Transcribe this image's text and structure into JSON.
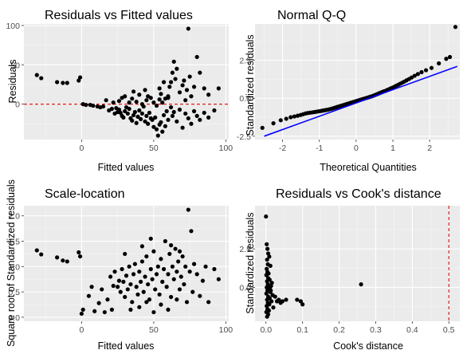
{
  "chart_data": [
    {
      "type": "scatter",
      "title": "Residuals vs Fitted values",
      "xlabel": "Fitted values",
      "ylabel": "Residuals",
      "xlim": [
        -40,
        102
      ],
      "ylim": [
        -45,
        102
      ],
      "xticks": [
        0,
        50,
        100
      ],
      "yticks": [
        0,
        50,
        100
      ],
      "hline": {
        "y": 0,
        "color": "#e41a1c",
        "style": "dashed"
      },
      "grid": true,
      "points": [
        [
          -31,
          37
        ],
        [
          -28,
          33
        ],
        [
          -17,
          28
        ],
        [
          -13,
          27
        ],
        [
          -10,
          27
        ],
        [
          -2,
          30
        ],
        [
          -1,
          34
        ],
        [
          1,
          0
        ],
        [
          3,
          -1
        ],
        [
          6,
          -1
        ],
        [
          8,
          -2
        ],
        [
          11,
          -3
        ],
        [
          13,
          -4
        ],
        [
          15,
          -3
        ],
        [
          17,
          5
        ],
        [
          19,
          -8
        ],
        [
          21,
          -6
        ],
        [
          22,
          2
        ],
        [
          23,
          -12
        ],
        [
          24,
          -5
        ],
        [
          25,
          -10
        ],
        [
          26,
          -7
        ],
        [
          27,
          -11
        ],
        [
          28,
          -15
        ],
        [
          29,
          -17
        ],
        [
          30,
          -9
        ],
        [
          31,
          -4
        ],
        [
          32,
          -12
        ],
        [
          33,
          -6
        ],
        [
          34,
          -18
        ],
        [
          35,
          -21
        ],
        [
          36,
          -14
        ],
        [
          37,
          -10
        ],
        [
          38,
          -24
        ],
        [
          39,
          -16
        ],
        [
          40,
          -8
        ],
        [
          41,
          -19
        ],
        [
          42,
          -12
        ],
        [
          43,
          -3
        ],
        [
          44,
          -22
        ],
        [
          45,
          -15
        ],
        [
          46,
          -25
        ],
        [
          47,
          -11
        ],
        [
          48,
          -18
        ],
        [
          49,
          -20
        ],
        [
          50,
          -29
        ],
        [
          51,
          -17
        ],
        [
          52,
          -32
        ],
        [
          53,
          -40
        ],
        [
          54,
          -26
        ],
        [
          55,
          -23
        ],
        [
          56,
          -35
        ],
        [
          57,
          -14
        ],
        [
          58,
          -28
        ],
        [
          59,
          -9
        ],
        [
          60,
          -20
        ],
        [
          62,
          -4
        ],
        [
          63,
          -15
        ],
        [
          64,
          -10
        ],
        [
          66,
          -22
        ],
        [
          68,
          -7
        ],
        [
          70,
          -30
        ],
        [
          72,
          -12
        ],
        [
          74,
          -18
        ],
        [
          76,
          -25
        ],
        [
          78,
          -9
        ],
        [
          80,
          -15
        ],
        [
          82,
          -20
        ],
        [
          85,
          -11
        ],
        [
          88,
          -17
        ],
        [
          92,
          -8
        ],
        [
          26,
          4
        ],
        [
          30,
          10
        ],
        [
          33,
          2
        ],
        [
          35,
          7
        ],
        [
          38,
          3
        ],
        [
          40,
          12
        ],
        [
          42,
          0
        ],
        [
          45,
          5
        ],
        [
          48,
          8
        ],
        [
          50,
          2
        ],
        [
          52,
          -2
        ],
        [
          54,
          6
        ],
        [
          55,
          13
        ],
        [
          56,
          2
        ],
        [
          58,
          7
        ],
        [
          60,
          10
        ],
        [
          61,
          22
        ],
        [
          62,
          28
        ],
        [
          63,
          40
        ],
        [
          64,
          54
        ],
        [
          65,
          32
        ],
        [
          66,
          45
        ],
        [
          68,
          15
        ],
        [
          70,
          24
        ],
        [
          71,
          30
        ],
        [
          72,
          5
        ],
        [
          73,
          18
        ],
        [
          74,
          96
        ],
        [
          75,
          35
        ],
        [
          76,
          10
        ],
        [
          78,
          22
        ],
        [
          80,
          60
        ],
        [
          82,
          40
        ],
        [
          85,
          20
        ],
        [
          88,
          12
        ],
        [
          95,
          20
        ],
        [
          54,
          20
        ],
        [
          57,
          28
        ],
        [
          60,
          8
        ],
        [
          44,
          18
        ],
        [
          46,
          10
        ],
        [
          36,
          16
        ],
        [
          28,
          8
        ]
      ]
    },
    {
      "type": "scatter",
      "title": "Normal Q-Q",
      "xlabel": "Theoretical Quantities",
      "ylabel": "Standardized residuals",
      "xlim": [
        -2.75,
        2.82
      ],
      "ylim": [
        -2.72,
        4.9
      ],
      "xticks": [
        -2,
        -1,
        0,
        1,
        2
      ],
      "yticks": [
        -2.5,
        0,
        2.5
      ],
      "reference_line": {
        "from": [
          -2.5,
          -2.5
        ],
        "to": [
          2.75,
          2.1
        ],
        "color": "#0000ff"
      },
      "grid": true,
      "points": [
        [
          -2.55,
          -1.95
        ],
        [
          -2.25,
          -1.65
        ],
        [
          -2.05,
          -1.45
        ],
        [
          -1.9,
          -1.35
        ],
        [
          -1.78,
          -1.25
        ],
        [
          -1.68,
          -1.2
        ],
        [
          -1.59,
          -1.15
        ],
        [
          -1.51,
          -1.1
        ],
        [
          -1.44,
          -1.05
        ],
        [
          -1.37,
          -1.0
        ],
        [
          -1.31,
          -0.97
        ],
        [
          -1.25,
          -0.95
        ],
        [
          -1.19,
          -0.93
        ],
        [
          -1.14,
          -0.91
        ],
        [
          -1.09,
          -0.89
        ],
        [
          -1.04,
          -0.87
        ],
        [
          -0.99,
          -0.85
        ],
        [
          -0.94,
          -0.83
        ],
        [
          -0.9,
          -0.81
        ],
        [
          -0.85,
          -0.79
        ],
        [
          -0.81,
          -0.77
        ],
        [
          -0.76,
          -0.75
        ],
        [
          -0.72,
          -0.72
        ],
        [
          -0.68,
          -0.7
        ],
        [
          -0.64,
          -0.67
        ],
        [
          -0.6,
          -0.64
        ],
        [
          -0.56,
          -0.61
        ],
        [
          -0.52,
          -0.58
        ],
        [
          -0.48,
          -0.55
        ],
        [
          -0.44,
          -0.52
        ],
        [
          -0.4,
          -0.49
        ],
        [
          -0.36,
          -0.46
        ],
        [
          -0.32,
          -0.43
        ],
        [
          -0.28,
          -0.4
        ],
        [
          -0.24,
          -0.37
        ],
        [
          -0.2,
          -0.34
        ],
        [
          -0.16,
          -0.31
        ],
        [
          -0.12,
          -0.28
        ],
        [
          -0.08,
          -0.25
        ],
        [
          -0.04,
          -0.22
        ],
        [
          0.0,
          -0.19
        ],
        [
          0.04,
          -0.16
        ],
        [
          0.08,
          -0.13
        ],
        [
          0.12,
          -0.1
        ],
        [
          0.16,
          -0.07
        ],
        [
          0.2,
          -0.04
        ],
        [
          0.24,
          -0.01
        ],
        [
          0.28,
          0.02
        ],
        [
          0.32,
          0.05
        ],
        [
          0.36,
          0.08
        ],
        [
          0.4,
          0.11
        ],
        [
          0.44,
          0.14
        ],
        [
          0.48,
          0.18
        ],
        [
          0.52,
          0.22
        ],
        [
          0.56,
          0.26
        ],
        [
          0.6,
          0.3
        ],
        [
          0.64,
          0.34
        ],
        [
          0.68,
          0.38
        ],
        [
          0.72,
          0.42
        ],
        [
          0.76,
          0.46
        ],
        [
          0.81,
          0.5
        ],
        [
          0.85,
          0.55
        ],
        [
          0.9,
          0.6
        ],
        [
          0.94,
          0.65
        ],
        [
          0.99,
          0.7
        ],
        [
          1.04,
          0.76
        ],
        [
          1.09,
          0.82
        ],
        [
          1.14,
          0.88
        ],
        [
          1.19,
          0.95
        ],
        [
          1.25,
          1.02
        ],
        [
          1.31,
          1.1
        ],
        [
          1.37,
          1.18
        ],
        [
          1.44,
          1.27
        ],
        [
          1.51,
          1.37
        ],
        [
          1.59,
          1.48
        ],
        [
          1.68,
          1.6
        ],
        [
          1.78,
          1.72
        ],
        [
          1.9,
          1.85
        ],
        [
          2.05,
          2.0
        ],
        [
          2.25,
          2.3
        ],
        [
          2.45,
          2.6
        ],
        [
          2.55,
          2.72
        ],
        [
          2.7,
          4.7
        ]
      ]
    },
    {
      "type": "scatter",
      "title": "Scale-location",
      "xlabel": "Fitted values",
      "ylabel": "Square root of Standardized residuals",
      "xlim": [
        -40,
        102
      ],
      "ylim": [
        -0.08,
        2.2
      ],
      "xticks": [
        0,
        50,
        100
      ],
      "yticks": [
        0.0,
        0.5,
        1.0,
        1.5,
        2.0
      ],
      "grid": true,
      "points": [
        [
          -31,
          1.32
        ],
        [
          -28,
          1.24
        ],
        [
          -17,
          1.18
        ],
        [
          -13,
          1.12
        ],
        [
          -10,
          1.1
        ],
        [
          -2,
          1.28
        ],
        [
          -1,
          1.2
        ],
        [
          0,
          0.07
        ],
        [
          1,
          0.15
        ],
        [
          5,
          0.42
        ],
        [
          7,
          0.6
        ],
        [
          9,
          0.12
        ],
        [
          12,
          0.28
        ],
        [
          14,
          0.55
        ],
        [
          16,
          0.1
        ],
        [
          18,
          0.35
        ],
        [
          20,
          0.8
        ],
        [
          21,
          0.15
        ],
        [
          22,
          0.62
        ],
        [
          23,
          0.9
        ],
        [
          25,
          0.6
        ],
        [
          26,
          0.72
        ],
        [
          27,
          0.5
        ],
        [
          28,
          0.95
        ],
        [
          29,
          0.7
        ],
        [
          30,
          0.4
        ],
        [
          31,
          0.82
        ],
        [
          32,
          0.55
        ],
        [
          33,
          1.0
        ],
        [
          34,
          0.65
        ],
        [
          35,
          0.3
        ],
        [
          36,
          0.85
        ],
        [
          37,
          1.05
        ],
        [
          38,
          0.6
        ],
        [
          39,
          0.45
        ],
        [
          40,
          0.9
        ],
        [
          41,
          0.7
        ],
        [
          42,
          1.1
        ],
        [
          43,
          0.5
        ],
        [
          44,
          0.8
        ],
        [
          45,
          1.2
        ],
        [
          46,
          0.65
        ],
        [
          47,
          0.35
        ],
        [
          48,
          0.95
        ],
        [
          49,
          0.75
        ],
        [
          50,
          1.3
        ],
        [
          51,
          0.55
        ],
        [
          52,
          0.85
        ],
        [
          53,
          1.0
        ],
        [
          54,
          0.45
        ],
        [
          55,
          1.15
        ],
        [
          56,
          0.7
        ],
        [
          57,
          0.95
        ],
        [
          58,
          1.5
        ],
        [
          59,
          0.6
        ],
        [
          60,
          0.85
        ],
        [
          61,
          1.25
        ],
        [
          62,
          0.4
        ],
        [
          63,
          1.0
        ],
        [
          64,
          0.75
        ],
        [
          65,
          1.35
        ],
        [
          66,
          0.9
        ],
        [
          67,
          1.1
        ],
        [
          68,
          0.55
        ],
        [
          69,
          0.8
        ],
        [
          70,
          1.2
        ],
        [
          71,
          0.65
        ],
        [
          72,
          1.0
        ],
        [
          73,
          0.3
        ],
        [
          74,
          2.12
        ],
        [
          75,
          0.9
        ],
        [
          76,
          1.7
        ],
        [
          77,
          0.5
        ],
        [
          78,
          1.05
        ],
        [
          80,
          0.85
        ],
        [
          82,
          0.42
        ],
        [
          84,
          0.72
        ],
        [
          86,
          1.0
        ],
        [
          88,
          0.3
        ],
        [
          92,
          0.95
        ],
        [
          95,
          0.75
        ],
        [
          34,
          0.15
        ],
        [
          40,
          0.2
        ],
        [
          45,
          0.3
        ],
        [
          50,
          0.1
        ],
        [
          55,
          0.25
        ],
        [
          60,
          0.15
        ],
        [
          66,
          0.35
        ],
        [
          30,
          1.25
        ],
        [
          42,
          1.4
        ],
        [
          48,
          1.55
        ],
        [
          62,
          1.42
        ],
        [
          68,
          1.3
        ]
      ]
    },
    {
      "type": "scatter",
      "title": "Residuals vs Cook's distance",
      "xlabel": "Cook's distance",
      "ylabel": "Standardized residuals",
      "xlim": [
        -0.03,
        0.53
      ],
      "ylim": [
        -2.2,
        5.3
      ],
      "xticks": [
        0.0,
        0.1,
        0.2,
        0.3,
        0.4,
        0.5
      ],
      "yticks": [
        0,
        2.5
      ],
      "vline": {
        "x": 0.5,
        "color": "#e41a1c",
        "style": "dashed"
      },
      "grid": true,
      "points": [
        [
          0.0,
          4.6
        ],
        [
          0.002,
          2.8
        ],
        [
          0.004,
          2.5
        ],
        [
          0.006,
          2.2
        ],
        [
          0.003,
          1.8
        ],
        [
          0.005,
          1.5
        ],
        [
          0.002,
          1.2
        ],
        [
          0.004,
          1.0
        ],
        [
          0.001,
          0.8
        ],
        [
          0.006,
          0.6
        ],
        [
          0.003,
          0.4
        ],
        [
          0.005,
          0.2
        ],
        [
          0.002,
          0.0
        ],
        [
          0.004,
          -0.2
        ],
        [
          0.001,
          -0.4
        ],
        [
          0.006,
          -0.6
        ],
        [
          0.003,
          -0.8
        ],
        [
          0.005,
          -1.0
        ],
        [
          0.002,
          -1.2
        ],
        [
          0.004,
          -1.4
        ],
        [
          0.001,
          -1.6
        ],
        [
          0.006,
          -1.75
        ],
        [
          0.003,
          -1.9
        ],
        [
          0.008,
          -1.5
        ],
        [
          0.009,
          -1.1
        ],
        [
          0.01,
          -0.7
        ],
        [
          0.012,
          -0.3
        ],
        [
          0.014,
          0.1
        ],
        [
          0.01,
          0.5
        ],
        [
          0.015,
          -0.9
        ],
        [
          0.02,
          -1.3
        ],
        [
          0.018,
          -0.5
        ],
        [
          0.012,
          1.4
        ],
        [
          0.009,
          2.0
        ],
        [
          0.007,
          0.9
        ],
        [
          0.016,
          0.3
        ],
        [
          0.025,
          -0.6
        ],
        [
          0.03,
          -0.9
        ],
        [
          0.035,
          -0.8
        ],
        [
          0.04,
          -1.0
        ],
        [
          0.045,
          -0.9
        ],
        [
          0.055,
          -0.8
        ],
        [
          0.085,
          -0.8
        ],
        [
          0.095,
          -0.9
        ],
        [
          0.1,
          -1.1
        ],
        [
          0.26,
          0.2
        ],
        [
          0.008,
          -0.1
        ],
        [
          0.011,
          0.0
        ],
        [
          0.013,
          -0.2
        ]
      ]
    }
  ]
}
